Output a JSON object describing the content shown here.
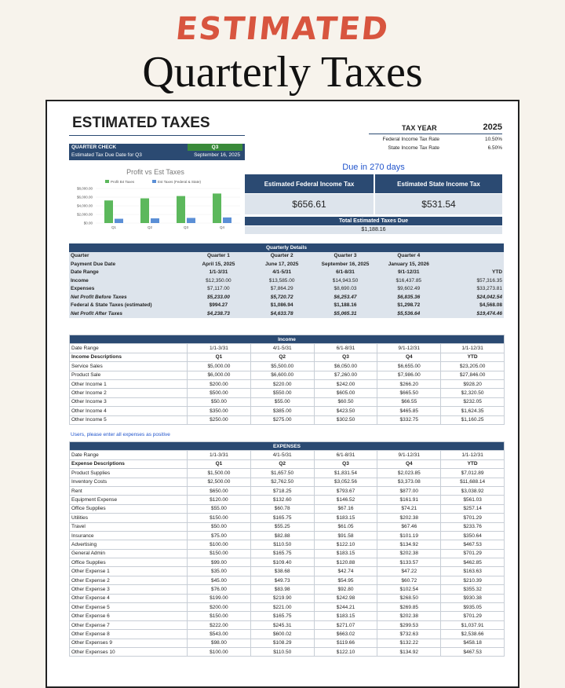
{
  "header": {
    "kicker": "ESTIMATED",
    "title": "Quarterly Taxes"
  },
  "sheet": {
    "title": "ESTIMATED TAXES",
    "tax_year": {
      "label": "TAX YEAR",
      "value": "2025"
    },
    "rates": [
      [
        "Federal Income Tax Rate",
        "10.50%"
      ],
      [
        "State Income Tax Rate",
        "6.50%"
      ]
    ],
    "quarter_check": {
      "label": "QUARTER CHECK",
      "value": "Q3",
      "due_label": "Estimated Tax Due Date for Q3",
      "due_value": "September 16, 2025"
    },
    "due_in": "Due in 270 days",
    "federal": {
      "label": "Estimated Federal Income Tax",
      "value": "$656.61"
    },
    "state": {
      "label": "Estimated State Income Tax",
      "value": "$531.54"
    },
    "total": {
      "label": "Total Estimated Taxes Due",
      "value": "$1,188.16"
    },
    "chart": {
      "type": "bar",
      "title": "Profit vs Est Taxes",
      "categories": [
        "Q1",
        "Q2",
        "Q3",
        "Q4"
      ],
      "series": [
        {
          "name": "Profit B4 Taxes",
          "color": "#5cb85c",
          "values": [
            5233,
            5720.72,
            6253.47,
            6835.36
          ]
        },
        {
          "name": "Est Taxes (Federal & State)",
          "color": "#5b8fd6",
          "values": [
            994.27,
            1086.94,
            1188.16,
            1298.72
          ]
        }
      ],
      "ylim": [
        0,
        8000
      ],
      "yticks": [
        {
          "value": 0,
          "label": "$0.00"
        },
        {
          "value": 2000,
          "label": "$2,000.00"
        },
        {
          "value": 4000,
          "label": "$4,000.00"
        },
        {
          "value": 6000,
          "label": "$6,000.00"
        },
        {
          "value": 8000,
          "label": "$8,000.00"
        }
      ]
    },
    "quarterly": {
      "title": "Quarterly Details",
      "rows": [
        [
          "Quarter",
          "Quarter 1",
          "Quarter 2",
          "Quarter 3",
          "Quarter 4"
        ],
        [
          "Payment Due Date",
          "April 15, 2025",
          "June 17, 2025",
          "September 16, 2025",
          "January 15, 2026"
        ],
        [
          "Date Range",
          "1/1-3/31",
          "4/1-5/31",
          "6/1-8/31",
          "9/1-12/31",
          "YTD"
        ],
        [
          "Income",
          "$12,350.00",
          "$13,585.00",
          "$14,943.50",
          "$16,437.85",
          "$57,316.35"
        ],
        [
          "Expenses",
          "$7,117.00",
          "$7,864.29",
          "$8,690.03",
          "$9,602.49",
          "$33,273.81"
        ],
        [
          "Net Profit Before Taxes",
          "$5,233.00",
          "$5,720.72",
          "$6,253.47",
          "$6,835.36",
          "$24,042.54"
        ],
        [
          "Federal & State Taxes (estimated)",
          "$994.27",
          "$1,086.94",
          "$1,188.16",
          "$1,298.72",
          "$4,568.08"
        ],
        [
          "Net Profit After Taxes",
          "$4,238.73",
          "$4,633.78",
          "$5,065.31",
          "$5,536.64",
          "$19,474.46"
        ]
      ]
    },
    "income": {
      "title": "Income",
      "rows": [
        [
          "Date Range",
          "1/1-3/31",
          "4/1-5/31",
          "6/1-8/31",
          "9/1-12/31",
          "1/1-12/31"
        ],
        [
          "Income Descriptions",
          "Q1",
          "Q2",
          "Q3",
          "Q4",
          "YTD"
        ],
        [
          "Service Sales",
          "$5,000.00",
          "$5,500.00",
          "$6,050.00",
          "$6,655.00",
          "$23,205.00"
        ],
        [
          "Product Sale",
          "$6,000.00",
          "$6,600.00",
          "$7,260.00",
          "$7,986.00",
          "$27,846.00"
        ],
        [
          "Other Income 1",
          "$200.00",
          "$220.00",
          "$242.00",
          "$266.20",
          "$928.20"
        ],
        [
          "Other Income 2",
          "$500.00",
          "$550.00",
          "$605.00",
          "$665.50",
          "$2,320.50"
        ],
        [
          "Other Income 3",
          "$50.00",
          "$55.00",
          "$60.50",
          "$66.55",
          "$232.05"
        ],
        [
          "Other Income 4",
          "$350.00",
          "$385.00",
          "$423.50",
          "$465.85",
          "$1,624.35"
        ],
        [
          "Other Income 5",
          "$250.00",
          "$275.00",
          "$302.50",
          "$332.75",
          "$1,160.25"
        ]
      ]
    },
    "note": "Users, please enter all expenses as positive",
    "expenses": {
      "title": "EXPENSES",
      "rows": [
        [
          "Date Range",
          "1/1-3/31",
          "4/1-5/31",
          "6/1-8/31",
          "9/1-12/31",
          "1/1-12/31"
        ],
        [
          "Expense Descriptions",
          "Q1",
          "Q2",
          "Q3",
          "Q4",
          "YTD"
        ],
        [
          "Product Supplies",
          "$1,500.00",
          "$1,657.50",
          "$1,831.54",
          "$2,023.85",
          "$7,012.89"
        ],
        [
          "Inventory Costs",
          "$2,500.00",
          "$2,762.50",
          "$3,052.56",
          "$3,373.08",
          "$11,688.14"
        ],
        [
          "Rent",
          "$650.00",
          "$718.25",
          "$793.67",
          "$877.00",
          "$3,038.92"
        ],
        [
          "Equipment Expense",
          "$120.00",
          "$132.60",
          "$146.52",
          "$161.91",
          "$561.03"
        ],
        [
          "Office Supplies",
          "$55.00",
          "$60.78",
          "$67.16",
          "$74.21",
          "$257.14"
        ],
        [
          "Utilities",
          "$150.00",
          "$165.75",
          "$183.15",
          "$202.38",
          "$701.29"
        ],
        [
          "Travel",
          "$50.00",
          "$55.25",
          "$61.05",
          "$67.46",
          "$233.76"
        ],
        [
          "Insurance",
          "$75.00",
          "$82.88",
          "$91.58",
          "$101.19",
          "$350.64"
        ],
        [
          "Advertising",
          "$100.00",
          "$110.50",
          "$122.10",
          "$134.92",
          "$467.53"
        ],
        [
          "General Admin",
          "$150.00",
          "$165.75",
          "$183.15",
          "$202.38",
          "$701.29"
        ],
        [
          "Office Supplies",
          "$99.00",
          "$109.40",
          "$120.88",
          "$133.57",
          "$462.85"
        ],
        [
          "Other Expense 1",
          "$35.00",
          "$38.68",
          "$42.74",
          "$47.22",
          "$163.63"
        ],
        [
          "Other Expense 2",
          "$45.00",
          "$49.73",
          "$54.95",
          "$60.72",
          "$210.39"
        ],
        [
          "Other Expense 3",
          "$76.00",
          "$83.98",
          "$92.80",
          "$102.54",
          "$355.32"
        ],
        [
          "Other Expense 4",
          "$199.00",
          "$219.90",
          "$242.98",
          "$268.50",
          "$930.38"
        ],
        [
          "Other Expense 5",
          "$200.00",
          "$221.00",
          "$244.21",
          "$269.85",
          "$935.05"
        ],
        [
          "Other Expense 6",
          "$150.00",
          "$165.75",
          "$183.15",
          "$202.38",
          "$701.29"
        ],
        [
          "Other Expense 7",
          "$222.00",
          "$245.31",
          "$271.07",
          "$299.53",
          "$1,037.91"
        ],
        [
          "Other Expense 8",
          "$543.00",
          "$600.02",
          "$663.02",
          "$732.63",
          "$2,538.66"
        ],
        [
          "Other Expenses 9",
          "$98.00",
          "$108.29",
          "$119.66",
          "$132.22",
          "$458.18"
        ],
        [
          "Other Expenses 10",
          "$100.00",
          "$110.50",
          "$122.10",
          "$134.92",
          "$467.53"
        ]
      ]
    }
  }
}
